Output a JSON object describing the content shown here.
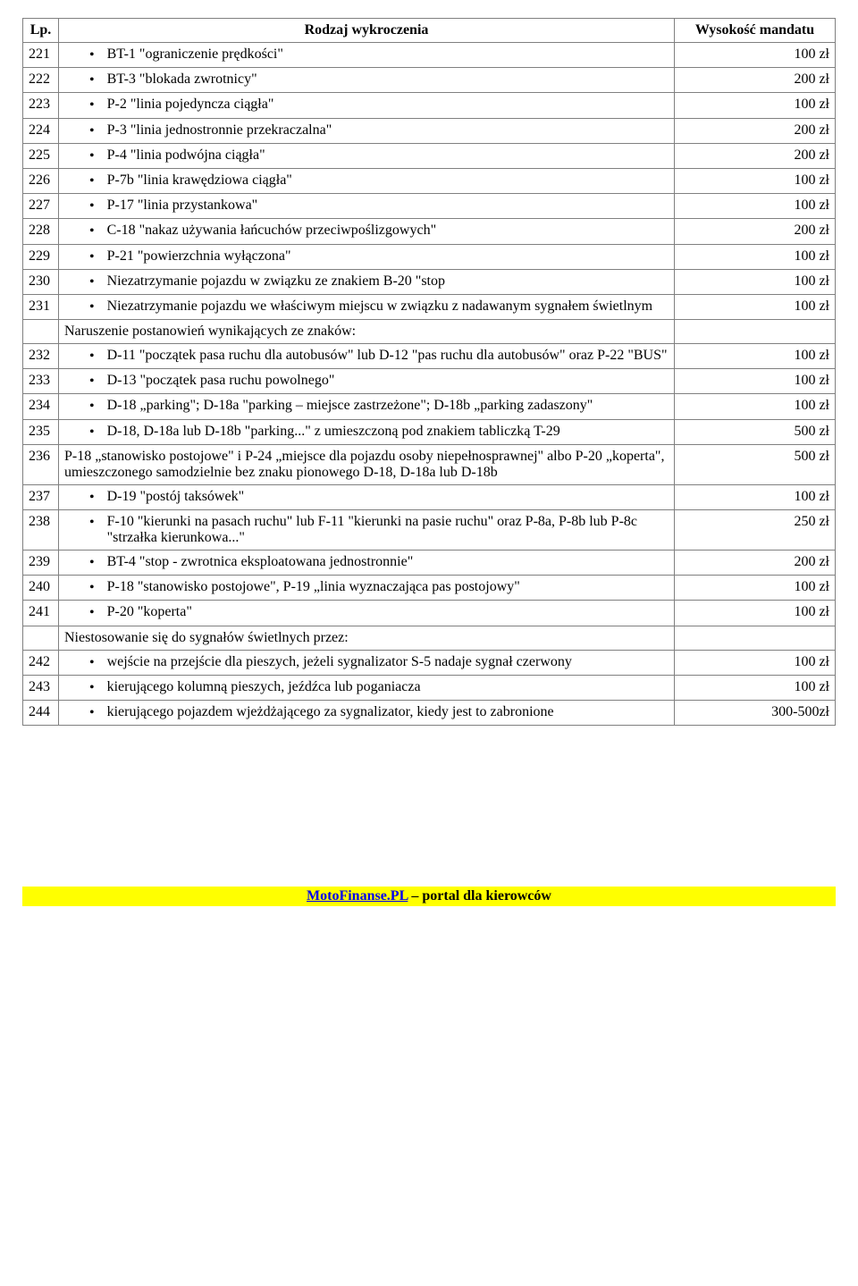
{
  "header": {
    "lp": "Lp.",
    "desc": "Rodzaj wykroczenia",
    "amt": "Wysokość mandatu"
  },
  "rows": [
    {
      "lp": "221",
      "type": "bullet",
      "text": "BT-1 \"ograniczenie prędkości\"",
      "amt": "100 zł"
    },
    {
      "lp": "222",
      "type": "bullet",
      "text": "BT-3 \"blokada zwrotnicy\"",
      "amt": "200 zł"
    },
    {
      "lp": "223",
      "type": "bullet",
      "text": "P-2 \"linia pojedyncza ciągła\"",
      "amt": "100 zł"
    },
    {
      "lp": "224",
      "type": "bullet",
      "text": "P-3 \"linia jednostronnie przekraczalna\"",
      "amt": "200 zł"
    },
    {
      "lp": "225",
      "type": "bullet",
      "text": "P-4 \"linia podwójna ciągła\"",
      "amt": "200 zł"
    },
    {
      "lp": "226",
      "type": "bullet",
      "text": "P-7b \"linia krawędziowa ciągła\"",
      "amt": "100 zł"
    },
    {
      "lp": "227",
      "type": "bullet",
      "text": "P-17 \"linia przystankowa\"",
      "amt": "100 zł"
    },
    {
      "lp": "228",
      "type": "bullet",
      "text": "C-18 \"nakaz używania łańcuchów przeciwpoślizgowych\"",
      "amt": "200 zł"
    },
    {
      "lp": "229",
      "type": "bullet",
      "text": "P-21 \"powierzchnia wyłączona\"",
      "amt": "100 zł"
    },
    {
      "lp": "230",
      "type": "bullet",
      "text": "Niezatrzymanie pojazdu w związku ze znakiem B-20 \"stop",
      "amt": "100 zł"
    },
    {
      "lp": "231",
      "type": "bullet",
      "text": "Niezatrzymanie pojazdu we właściwym miejscu w związku z nadawanym sygnałem świetlnym",
      "amt": "100 zł"
    },
    {
      "lp": "",
      "type": "section",
      "text": "Naruszenie postanowień wynikających ze znaków:",
      "amt": ""
    },
    {
      "lp": "232",
      "type": "bullet",
      "text": "D-11 \"początek pasa ruchu dla autobusów\" lub D-12 \"pas ruchu dla autobusów\" oraz P-22 \"BUS\"",
      "amt": "100 zł"
    },
    {
      "lp": "233",
      "type": "bullet",
      "text": "D-13 \"początek pasa ruchu powolnego\"",
      "amt": "100 zł"
    },
    {
      "lp": "234",
      "type": "bullet",
      "text": "D-18 „parking\"; D-18a \"parking – miejsce zastrzeżone\"; D-18b „parking zadaszony\"",
      "amt": "100 zł"
    },
    {
      "lp": "235",
      "type": "bullet",
      "text": "D-18, D-18a lub D-18b \"parking...\" z umieszczoną pod znakiem tabliczką T-29",
      "amt": "500 zł"
    },
    {
      "lp": "236",
      "type": "plain",
      "text": "P-18 „stanowisko postojowe\" i P-24 „miejsce dla pojazdu osoby niepełnosprawnej\" albo P-20 „koperta\", umieszczonego samodzielnie bez znaku pionowego D-18, D-18a lub D-18b",
      "amt": "500 zł"
    },
    {
      "lp": "237",
      "type": "bullet",
      "text": "D-19 \"postój taksówek\"",
      "amt": "100 zł"
    },
    {
      "lp": "238",
      "type": "bullet",
      "text": "F-10 \"kierunki na pasach ruchu\" lub F-11 \"kierunki na pasie ruchu\" oraz P-8a, P-8b lub P-8c \"strzałka kierunkowa...\"",
      "amt": "250 zł"
    },
    {
      "lp": "239",
      "type": "bullet",
      "text": "BT-4 \"stop - zwrotnica eksploatowana jednostronnie\"",
      "amt": "200 zł"
    },
    {
      "lp": "240",
      "type": "bullet",
      "text": "P-18 \"stanowisko postojowe\", P-19 „linia wyznaczająca pas postojowy\"",
      "amt": "100 zł"
    },
    {
      "lp": "241",
      "type": "bullet",
      "text": "P-20 \"koperta\"",
      "amt": "100 zł"
    },
    {
      "lp": "",
      "type": "section",
      "text": "Niestosowanie się do sygnałów świetlnych przez:",
      "amt": ""
    },
    {
      "lp": "242",
      "type": "bullet",
      "text": "wejście na przejście dla pieszych, jeżeli sygnalizator S-5 nadaje sygnał czerwony",
      "amt": "100 zł"
    },
    {
      "lp": "243",
      "type": "bullet",
      "text": "kierującego kolumną pieszych, jeźdźca lub poganiacza",
      "amt": "100 zł"
    },
    {
      "lp": "244",
      "type": "bullet",
      "text": "kierującego pojazdem wjeżdżającego za sygnalizator, kiedy jest to zabronione",
      "amt": "300-500zł"
    }
  ],
  "footer": {
    "link": "MotoFinanse.PL",
    "rest": " – portal dla kierowców"
  }
}
